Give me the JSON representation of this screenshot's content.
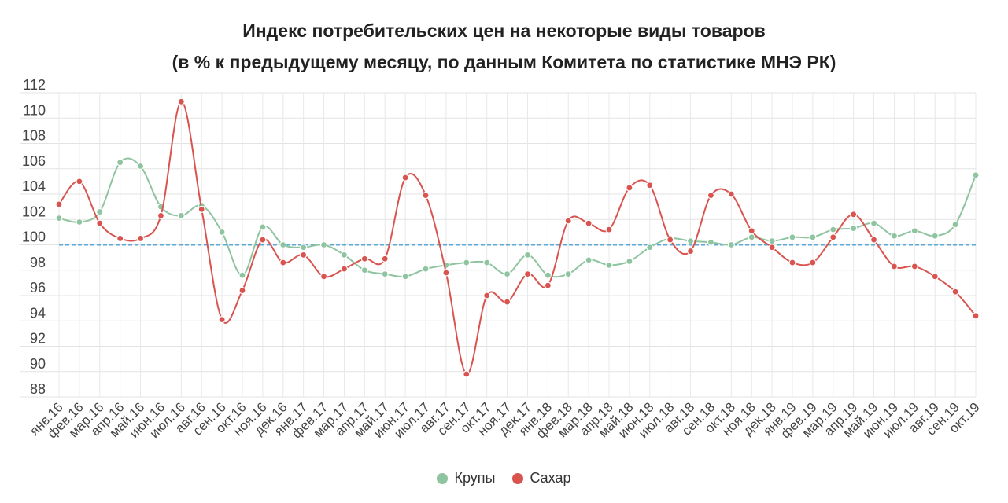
{
  "chart_data": {
    "type": "line",
    "title": "Индекс потребительских цен на некоторые виды товаров",
    "subtitle": "(в % к предыдущему месяцу, по данным Комитета по статистике МНЭ РК)",
    "xlabel": "",
    "ylabel": "",
    "ylim": [
      88,
      112
    ],
    "yticks": [
      88,
      90,
      92,
      94,
      96,
      98,
      100,
      102,
      104,
      106,
      108,
      110,
      112
    ],
    "reference_line": 100,
    "grid": true,
    "legend_position": "bottom",
    "categories": [
      "янв.16",
      "фев.16",
      "мар.16",
      "апр.16",
      "май.16",
      "июн.16",
      "июл.16",
      "авг.16",
      "сен.16",
      "окт.16",
      "ноя.16",
      "дек.16",
      "янв.17",
      "фев.17",
      "мар.17",
      "апр.17",
      "май.17",
      "июн.17",
      "июл.17",
      "авг.17",
      "сен.17",
      "окт.17",
      "ноя.17",
      "дек.17",
      "янв.18",
      "фев.18",
      "мар.18",
      "апр.18",
      "май.18",
      "июн.18",
      "июл.18",
      "авг.18",
      "сен.18",
      "окт.18",
      "ноя.18",
      "дек.18",
      "янв.19",
      "фев.19",
      "мар.19",
      "апр.19",
      "май.19",
      "июн.19",
      "июл.19",
      "авг.19",
      "сен.19",
      "окт.19"
    ],
    "series": [
      {
        "name": "Крупы",
        "color": "#8fc4a0",
        "values": [
          102.1,
          101.8,
          102.6,
          106.5,
          106.2,
          103.0,
          102.3,
          103.1,
          101.0,
          97.6,
          101.4,
          100.0,
          99.8,
          100.0,
          99.2,
          98.0,
          97.7,
          97.5,
          98.1,
          98.4,
          98.6,
          98.6,
          97.7,
          99.2,
          97.6,
          97.7,
          98.8,
          98.4,
          98.7,
          99.8,
          100.5,
          100.3,
          100.2,
          100.0,
          100.6,
          100.3,
          100.6,
          100.6,
          101.2,
          101.3,
          101.7,
          100.7,
          101.1,
          100.7,
          101.6,
          105.5
        ]
      },
      {
        "name": "Сахар",
        "color": "#d9534f",
        "values": [
          103.2,
          105.0,
          101.7,
          100.5,
          100.5,
          102.3,
          111.3,
          102.8,
          94.1,
          96.4,
          100.4,
          98.6,
          99.2,
          97.5,
          98.1,
          98.9,
          98.9,
          105.3,
          103.9,
          97.8,
          89.8,
          96.0,
          95.5,
          97.7,
          96.8,
          101.9,
          101.7,
          101.2,
          104.5,
          104.7,
          100.4,
          99.5,
          103.9,
          104.0,
          101.1,
          99.8,
          98.6,
          98.6,
          100.6,
          102.4,
          100.4,
          98.3,
          98.3,
          97.5,
          96.3,
          94.4
        ]
      }
    ]
  }
}
